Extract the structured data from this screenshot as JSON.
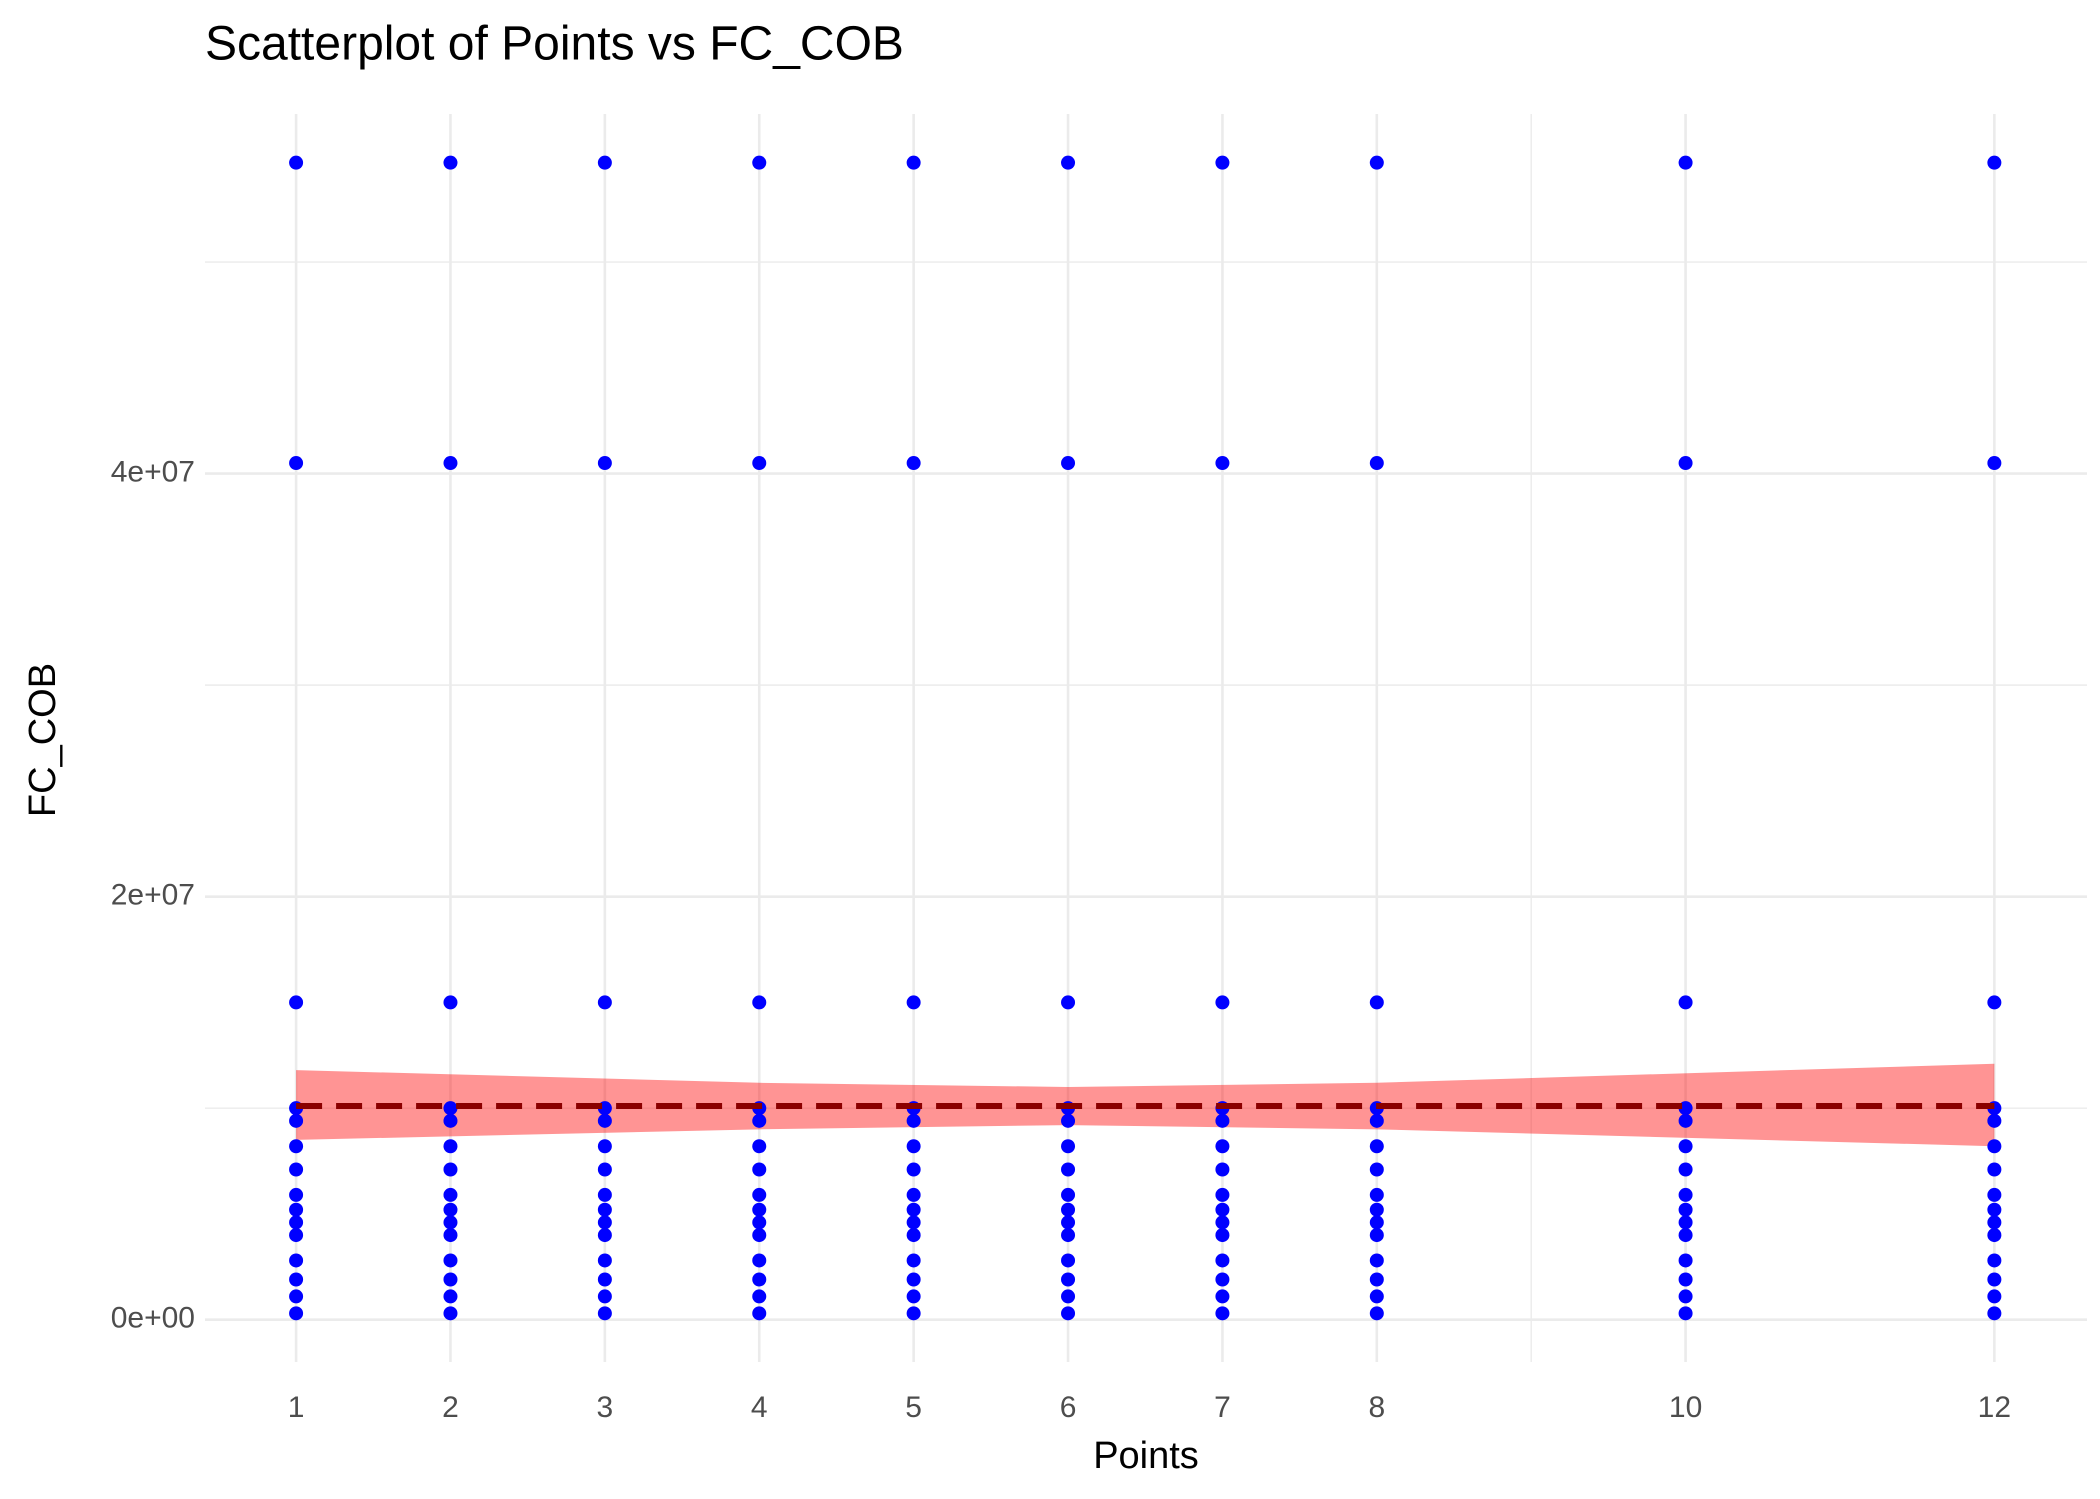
{
  "chart_data": {
    "type": "scatter",
    "title": "Scatterplot of Points vs  FC_COB",
    "x_label": "Points",
    "y_label": "FC_COB",
    "xlim": [
      0.41,
      12.6
    ],
    "ylim": [
      -2000000,
      57000000
    ],
    "xticks": [
      1,
      2,
      3,
      4,
      5,
      6,
      7,
      8,
      10,
      12
    ],
    "xminor": [
      9
    ],
    "yticks": [
      {
        "value": 0,
        "label": "0e+00"
      },
      {
        "value": 20000000,
        "label": "2e+07"
      },
      {
        "value": 40000000,
        "label": "4e+07"
      }
    ],
    "yminor": [
      10000000,
      30000000,
      50000000
    ],
    "grid": true,
    "series": [
      {
        "color": "#0000ff",
        "x": [
          1,
          1,
          1,
          1,
          1,
          1,
          1,
          1,
          1,
          1,
          1,
          1,
          1,
          1,
          1,
          2,
          2,
          2,
          2,
          2,
          2,
          2,
          2,
          2,
          2,
          2,
          2,
          2,
          2,
          2,
          3,
          3,
          3,
          3,
          3,
          3,
          3,
          3,
          3,
          3,
          3,
          3,
          3,
          3,
          3,
          4,
          4,
          4,
          4,
          4,
          4,
          4,
          4,
          4,
          4,
          4,
          4,
          4,
          4,
          4,
          5,
          5,
          5,
          5,
          5,
          5,
          5,
          5,
          5,
          5,
          5,
          5,
          5,
          5,
          5,
          6,
          6,
          6,
          6,
          6,
          6,
          6,
          6,
          6,
          6,
          6,
          6,
          6,
          6,
          6,
          7,
          7,
          7,
          7,
          7,
          7,
          7,
          7,
          7,
          7,
          7,
          7,
          7,
          7,
          7,
          8,
          8,
          8,
          8,
          8,
          8,
          8,
          8,
          8,
          8,
          8,
          8,
          8,
          8,
          8,
          10,
          10,
          10,
          10,
          10,
          10,
          10,
          10,
          10,
          10,
          10,
          10,
          10,
          10,
          10,
          12,
          12,
          12,
          12,
          12,
          12,
          12,
          12,
          12,
          12,
          12,
          12,
          12,
          12,
          12
        ],
        "values": [
          54700000,
          40500000,
          15000000,
          10000000,
          9400000,
          8200000,
          7100000,
          5900000,
          5200000,
          4600000,
          4000000,
          2800000,
          1900000,
          1100000,
          300000,
          54700000,
          40500000,
          15000000,
          10000000,
          9400000,
          8200000,
          7100000,
          5900000,
          5200000,
          4600000,
          4000000,
          2800000,
          1900000,
          1100000,
          300000,
          54700000,
          40500000,
          15000000,
          10000000,
          9400000,
          8200000,
          7100000,
          5900000,
          5200000,
          4600000,
          4000000,
          2800000,
          1900000,
          1100000,
          300000,
          54700000,
          40500000,
          15000000,
          10000000,
          9400000,
          8200000,
          7100000,
          5900000,
          5200000,
          4600000,
          4000000,
          2800000,
          1900000,
          1100000,
          300000,
          54700000,
          40500000,
          15000000,
          10000000,
          9400000,
          8200000,
          7100000,
          5900000,
          5200000,
          4600000,
          4000000,
          2800000,
          1900000,
          1100000,
          300000,
          54700000,
          40500000,
          15000000,
          10000000,
          9400000,
          8200000,
          7100000,
          5900000,
          5200000,
          4600000,
          4000000,
          2800000,
          1900000,
          1100000,
          300000,
          54700000,
          40500000,
          15000000,
          10000000,
          9400000,
          8200000,
          7100000,
          5900000,
          5200000,
          4600000,
          4000000,
          2800000,
          1900000,
          1100000,
          300000,
          54700000,
          40500000,
          15000000,
          10000000,
          9400000,
          8200000,
          7100000,
          5900000,
          5200000,
          4600000,
          4000000,
          2800000,
          1900000,
          1100000,
          300000,
          54700000,
          40500000,
          15000000,
          10000000,
          9400000,
          8200000,
          7100000,
          5900000,
          5200000,
          4600000,
          4000000,
          2800000,
          1900000,
          1100000,
          300000,
          54700000,
          40500000,
          15000000,
          10000000,
          9400000,
          8200000,
          7100000,
          5900000,
          5200000,
          4600000,
          4000000,
          2800000,
          1900000,
          1100000,
          300000
        ]
      }
    ],
    "trend": {
      "color": "#8b0000",
      "x": [
        1,
        12
      ],
      "values": [
        10100000,
        10100000
      ]
    },
    "band": {
      "color": "#ff0000",
      "x": [
        1,
        4,
        6,
        8,
        12
      ],
      "upper": [
        11800000,
        11200000,
        11000000,
        11200000,
        12100000
      ],
      "lower": [
        8500000,
        9000000,
        9200000,
        9000000,
        8200000
      ]
    }
  }
}
